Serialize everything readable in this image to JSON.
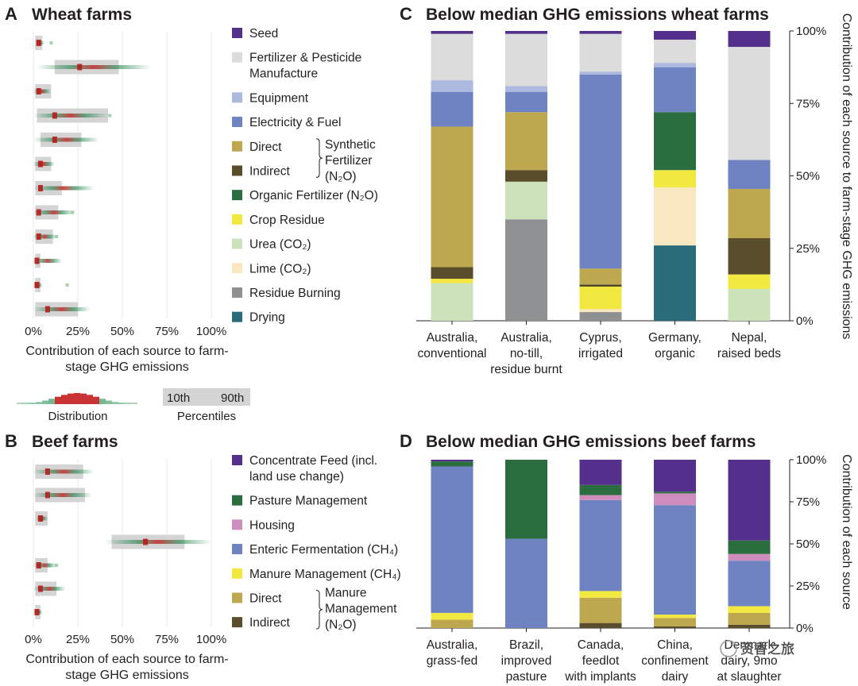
{
  "panelA": {
    "letter": "A",
    "title": "Wheat farms",
    "xticks": [
      "0%",
      "25%",
      "50%",
      "75%",
      "100%"
    ],
    "xlabel": [
      "Contribution of each source to farm-",
      "stage GHG emissions"
    ],
    "rows": [
      {
        "p10": 1,
        "p90": 5,
        "mode": 3,
        "spread": 3,
        "outlier": 10
      },
      {
        "p10": 12,
        "p90": 48,
        "mode": 26,
        "spread": 40,
        "outlier": null
      },
      {
        "p10": 1,
        "p90": 10,
        "mode": 3,
        "spread": 7,
        "outlier": null
      },
      {
        "p10": 2,
        "p90": 42,
        "mode": 12,
        "spread": 30,
        "outlier": 43
      },
      {
        "p10": 4,
        "p90": 27,
        "mode": 12,
        "spread": 25,
        "outlier": null
      },
      {
        "p10": 1,
        "p90": 10,
        "mode": 4,
        "spread": 8,
        "outlier": null
      },
      {
        "p10": 1,
        "p90": 16,
        "mode": 4,
        "spread": 30,
        "outlier": null
      },
      {
        "p10": 1,
        "p90": 14,
        "mode": 3,
        "spread": 20,
        "outlier": 22
      },
      {
        "p10": 1,
        "p90": 11,
        "mode": 3,
        "spread": 10,
        "outlier": 13
      },
      {
        "p10": 1,
        "p90": 4,
        "mode": 2,
        "spread": 14,
        "outlier": null
      },
      {
        "p10": 1,
        "p90": 4,
        "mode": 2,
        "spread": 3,
        "outlier": 19
      },
      {
        "p10": 1,
        "p90": 25,
        "mode": 8,
        "spread": 24,
        "outlier": null
      }
    ]
  },
  "legendA": [
    {
      "label": [
        "Seed"
      ],
      "color": "#54308c"
    },
    {
      "label": [
        "Fertilizer & Pesticide",
        "Manufacture"
      ],
      "color": "#dcdcdc"
    },
    {
      "label": [
        "Equipment"
      ],
      "color": "#aeb9e0"
    },
    {
      "label": [
        "Electricity & Fuel"
      ],
      "color": "#6f82c2"
    },
    {
      "label": [
        "Direct"
      ],
      "color": "#bda850"
    },
    {
      "label": [
        "Indirect"
      ],
      "color": "#5a4d2c"
    },
    {
      "label": [
        "Organic Fertilizer (N₂O)"
      ],
      "color": "#2a6e3f"
    },
    {
      "label": [
        "Crop Residue"
      ],
      "color": "#f1e840"
    },
    {
      "label": [
        "Urea (CO₂)"
      ],
      "color": "#cbe2bb"
    },
    {
      "label": [
        "Lime (CO₂)"
      ],
      "color": "#f9e7c1"
    },
    {
      "label": [
        "Residue Burning"
      ],
      "color": "#8e9092"
    },
    {
      "label": [
        "Drying"
      ],
      "color": "#2a6b7a"
    }
  ],
  "legendA_group": [
    "Synthetic",
    "Fertilizer",
    "(N₂O)"
  ],
  "key": {
    "distribution": "Distribution",
    "p10": "10th",
    "p90": "90th",
    "percentiles": "Percentiles"
  },
  "panelB": {
    "letter": "B",
    "title": "Beef farms",
    "xticks": [
      "0%",
      "25%",
      "50%",
      "75%",
      "100%"
    ],
    "xlabel": [
      "Contribution of each source to farm-",
      "stage GHG emissions"
    ],
    "rows": [
      {
        "p10": 1,
        "p90": 28,
        "mode": 8,
        "spread": 26,
        "outlier": null
      },
      {
        "p10": 1,
        "p90": 29,
        "mode": 8,
        "spread": 25,
        "outlier": null
      },
      {
        "p10": 1,
        "p90": 8,
        "mode": 4,
        "spread": 4,
        "outlier": null
      },
      {
        "p10": 44,
        "p90": 85,
        "mode": 63,
        "spread": 38,
        "outlier": null
      },
      {
        "p10": 1,
        "p90": 8,
        "mode": 3,
        "spread": 10,
        "outlier": 13
      },
      {
        "p10": 1,
        "p90": 13,
        "mode": 4,
        "spread": 14,
        "outlier": null
      },
      {
        "p10": 1,
        "p90": 4,
        "mode": 2,
        "spread": 3,
        "outlier": null
      }
    ]
  },
  "legendB": [
    {
      "label": [
        "Concentrate Feed (incl.",
        "land use change)"
      ],
      "color": "#54308c"
    },
    {
      "label": [
        "Pasture Management"
      ],
      "color": "#2a6e3f"
    },
    {
      "label": [
        "Housing"
      ],
      "color": "#cf8dbd"
    },
    {
      "label": [
        "Enteric Fermentation (CH₄)"
      ],
      "color": "#6f82c2"
    },
    {
      "label": [
        "Manure Management (CH₄)"
      ],
      "color": "#f1e840"
    },
    {
      "label": [
        "Direct"
      ],
      "color": "#bda850"
    },
    {
      "label": [
        "Indirect"
      ],
      "color": "#5a4d2c"
    }
  ],
  "legendB_group": [
    "Manure",
    "Management",
    "(N₂O)"
  ],
  "chart_data": [
    {
      "type": "bar",
      "stacked": true,
      "title": "Below median GHG emissions wheat farms",
      "letter": "C",
      "ylabel": "Contribution of each source to farm-stage GHG emissions",
      "ylim": [
        0,
        100
      ],
      "yticks": [
        "0%",
        "25%",
        "50%",
        "75%",
        "100%"
      ],
      "categories": [
        [
          "Australia,",
          "conventional"
        ],
        [
          "Australia,",
          "no-till,",
          "residue burnt"
        ],
        [
          "Cyprus,",
          "irrigated"
        ],
        [
          "Germany,",
          "organic"
        ],
        [
          "Nepal,",
          "raised beds"
        ]
      ],
      "series": [
        {
          "name": "Drying",
          "color": "#2a6b7a",
          "values": [
            0,
            0,
            0,
            26,
            0
          ]
        },
        {
          "name": "Residue Burning",
          "color": "#8e9092",
          "values": [
            0,
            35,
            3,
            0,
            0
          ]
        },
        {
          "name": "Lime (CO₂)",
          "color": "#f9e7c1",
          "values": [
            0,
            0,
            1,
            20,
            0
          ]
        },
        {
          "name": "Urea (CO₂)",
          "color": "#cbe2bb",
          "values": [
            13,
            13,
            0,
            0,
            11
          ]
        },
        {
          "name": "Crop Residue",
          "color": "#f1e840",
          "values": [
            1.5,
            0,
            8,
            6,
            5
          ]
        },
        {
          "name": "Organic Fertilizer (N₂O)",
          "color": "#2a6e3f",
          "values": [
            0,
            0,
            0,
            20,
            0
          ]
        },
        {
          "name": "Indirect",
          "color": "#5a4d2c",
          "values": [
            4,
            4,
            0.5,
            0,
            12.5
          ]
        },
        {
          "name": "Direct",
          "color": "#bda850",
          "values": [
            48.5,
            20,
            5.5,
            0,
            17
          ]
        },
        {
          "name": "Electricity & Fuel",
          "color": "#6f82c2",
          "values": [
            12,
            7,
            67,
            15.5,
            10
          ]
        },
        {
          "name": "Equipment",
          "color": "#aeb9e0",
          "values": [
            4,
            2,
            1,
            1.5,
            0
          ]
        },
        {
          "name": "Fertilizer & Pesticide Manufacture",
          "color": "#dcdcdc",
          "values": [
            16,
            18,
            13,
            8,
            39
          ]
        },
        {
          "name": "Seed",
          "color": "#54308c",
          "values": [
            1,
            1,
            1,
            3,
            5.5
          ]
        }
      ]
    },
    {
      "type": "bar",
      "stacked": true,
      "title": "Below median GHG emissions beef farms",
      "letter": "D",
      "ylabel": "Contribution of each source",
      "ylim": [
        0,
        100
      ],
      "yticks": [
        "0%",
        "25%",
        "50%",
        "75%",
        "100%"
      ],
      "categories": [
        [
          "Australia,",
          "grass-fed"
        ],
        [
          "Brazil,",
          "improved",
          "pasture"
        ],
        [
          "Canada,",
          "feedlot",
          "with implants"
        ],
        [
          "China,",
          "confinement",
          "dairy"
        ],
        [
          "Denmark",
          "dairy, 9mo",
          "at slaughter"
        ]
      ],
      "series": [
        {
          "name": "Indirect",
          "color": "#5a4d2c",
          "values": [
            0,
            0,
            3,
            1,
            2
          ]
        },
        {
          "name": "Direct",
          "color": "#bda850",
          "values": [
            5,
            0,
            15,
            5,
            7
          ]
        },
        {
          "name": "Manure Management (CH₄)",
          "color": "#f1e840",
          "values": [
            4,
            0,
            4,
            2,
            4
          ]
        },
        {
          "name": "Enteric Fermentation (CH₄)",
          "color": "#6f82c2",
          "values": [
            87,
            53,
            54,
            65,
            27
          ]
        },
        {
          "name": "Housing",
          "color": "#cf8dbd",
          "values": [
            0,
            0,
            3,
            7,
            4
          ]
        },
        {
          "name": "Pasture Management",
          "color": "#2a6e3f",
          "values": [
            3,
            47,
            6,
            1,
            8
          ]
        },
        {
          "name": "Concentrate Feed (incl. land use change)",
          "color": "#54308c",
          "values": [
            1,
            0,
            15,
            19,
            48
          ]
        }
      ]
    }
  ],
  "watermark": "资香之旅"
}
